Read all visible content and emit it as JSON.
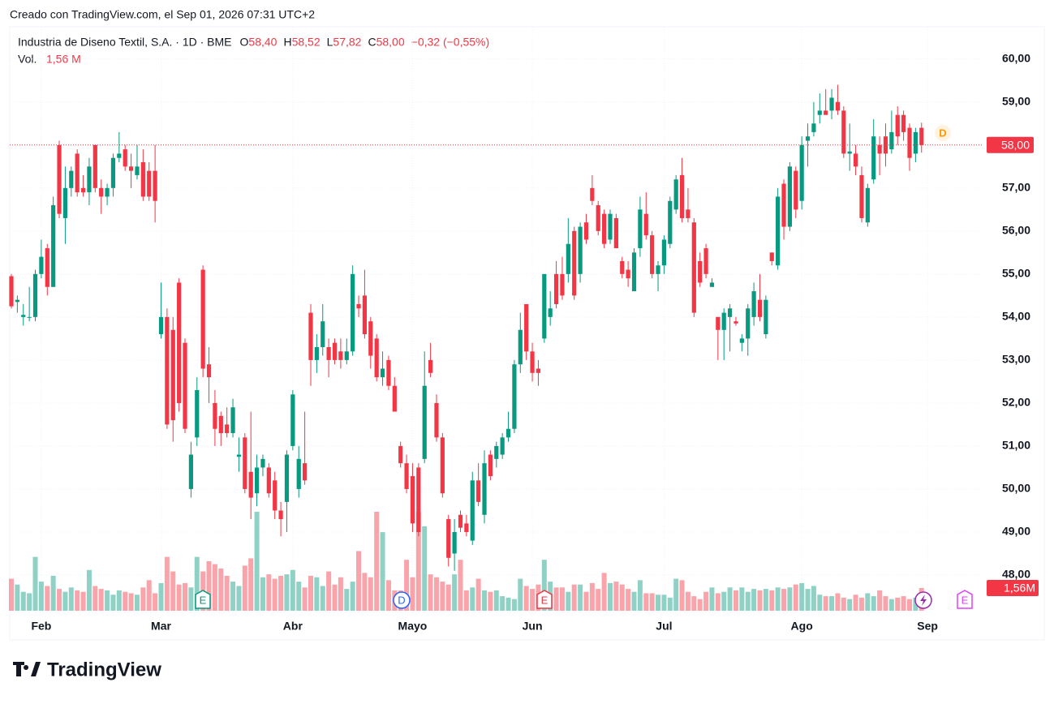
{
  "header": "Creado con TradingView.com, el Sep 01, 2026 07:31 UTC+2",
  "footer": "TradingView",
  "chart_data": {
    "type": "candlestick",
    "symbol": "Industria de Diseno Textil, S.A. · 1D · BME",
    "legend": {
      "o_label": "O",
      "o": "58,40",
      "h_label": "H",
      "h": "58,52",
      "l_label": "L",
      "l": "57,82",
      "c_label": "C",
      "c": "58,00",
      "change": "−0,32 (−0,55%)",
      "vol_label": "Vol.",
      "vol": "1,56 M"
    },
    "up_color": "#089981",
    "down_color": "#f23645",
    "grid": true,
    "xlim": [
      -0.27,
      162.06
    ],
    "ylim": [
      47.17,
      60.75
    ],
    "yticks": [
      {
        "value": 48,
        "label": "48,00"
      },
      {
        "value": 49,
        "label": "49,00"
      },
      {
        "value": 50,
        "label": "50,00"
      },
      {
        "value": 51,
        "label": "51,00"
      },
      {
        "value": 52,
        "label": "52,00"
      },
      {
        "value": 53,
        "label": "53,00"
      },
      {
        "value": 54,
        "label": "54,00"
      },
      {
        "value": 55,
        "label": "55,00"
      },
      {
        "value": 56,
        "label": "56,00"
      },
      {
        "value": 57,
        "label": "57,00"
      },
      {
        "value": 58,
        "label": "58,00"
      },
      {
        "value": 59,
        "label": "59,00"
      },
      {
        "value": 60,
        "label": "60,00"
      }
    ],
    "xticks": [
      {
        "value": 5,
        "label": "Feb"
      },
      {
        "value": 25,
        "label": "Mar"
      },
      {
        "value": 47,
        "label": "Abr"
      },
      {
        "value": 67,
        "label": "Mayo"
      },
      {
        "value": 87,
        "label": "Jun"
      },
      {
        "value": 109,
        "label": "Jul"
      },
      {
        "value": 132,
        "label": "Ago"
      },
      {
        "value": 153,
        "label": "Sep"
      }
    ],
    "last_price": {
      "value": 58,
      "label": "58,00"
    },
    "last_volume": {
      "value": 1.56,
      "label": "1,56M"
    },
    "events": [
      "E",
      "D",
      "E",
      "E"
    ],
    "dividend": "D",
    "ohlc": [
      [
        54.95,
        55.0,
        54.2,
        54.25
      ],
      [
        54.35,
        54.5,
        54.1,
        54.4
      ],
      [
        54.0,
        54.3,
        53.8,
        54.05
      ],
      [
        54.0,
        54.7,
        53.9,
        54.0
      ],
      [
        54.0,
        55.1,
        53.9,
        55.0
      ],
      [
        55.0,
        55.8,
        54.9,
        55.4
      ],
      [
        55.6,
        55.7,
        54.5,
        54.7
      ],
      [
        54.7,
        56.8,
        54.7,
        56.6
      ],
      [
        58.0,
        58.1,
        56.3,
        56.4
      ],
      [
        56.3,
        57.5,
        55.7,
        57.0
      ],
      [
        57.0,
        57.5,
        56.8,
        57.4
      ],
      [
        57.8,
        57.9,
        56.8,
        56.9
      ],
      [
        57.0,
        57.3,
        56.8,
        56.9
      ],
      [
        56.9,
        57.7,
        56.6,
        57.5
      ],
      [
        58.0,
        58.0,
        56.9,
        57.0
      ],
      [
        57.0,
        57.2,
        56.4,
        56.8
      ],
      [
        56.8,
        57.1,
        56.6,
        57.0
      ],
      [
        57.0,
        57.8,
        56.8,
        57.7
      ],
      [
        57.7,
        58.3,
        57.6,
        57.8
      ],
      [
        57.9,
        58.0,
        57.4,
        57.5
      ],
      [
        57.5,
        57.8,
        57.0,
        57.4
      ],
      [
        57.3,
        58.0,
        57.2,
        57.5
      ],
      [
        57.6,
        57.9,
        56.7,
        56.8
      ],
      [
        57.4,
        57.6,
        56.7,
        56.8
      ],
      [
        57.4,
        58.0,
        56.2,
        56.7
      ],
      [
        53.6,
        54.8,
        53.5,
        54.0
      ],
      [
        54.0,
        54.2,
        51.4,
        51.5
      ],
      [
        53.7,
        54.0,
        51.1,
        51.6
      ],
      [
        54.8,
        54.9,
        51.8,
        52.0
      ],
      [
        53.4,
        53.5,
        51.3,
        51.4
      ],
      [
        50.0,
        51.1,
        49.8,
        50.8
      ],
      [
        51.2,
        52.6,
        51.0,
        52.3
      ],
      [
        55.1,
        55.2,
        52.6,
        52.8
      ],
      [
        52.9,
        53.3,
        52.0,
        52.6
      ],
      [
        52.0,
        52.3,
        51.0,
        51.4
      ],
      [
        51.7,
        51.8,
        51.0,
        51.3
      ],
      [
        51.5,
        51.9,
        51.2,
        51.3
      ],
      [
        51.3,
        52.1,
        51.2,
        51.9
      ],
      [
        50.75,
        51.2,
        50.4,
        50.8
      ],
      [
        51.2,
        51.3,
        49.9,
        50.0
      ],
      [
        50.4,
        51.8,
        49.3,
        49.8
      ],
      [
        49.9,
        50.8,
        49.6,
        50.5
      ],
      [
        50.5,
        50.8,
        50.3,
        50.7
      ],
      [
        50.5,
        50.6,
        49.8,
        49.9
      ],
      [
        50.2,
        50.4,
        49.3,
        49.5
      ],
      [
        49.5,
        49.7,
        48.9,
        49.3
      ],
      [
        49.7,
        50.9,
        49.0,
        50.8
      ],
      [
        51.0,
        52.3,
        50.9,
        52.2
      ],
      [
        50.0,
        51.0,
        49.8,
        50.7
      ],
      [
        50.6,
        51.8,
        50.1,
        50.2
      ],
      [
        54.1,
        54.3,
        52.4,
        53.0
      ],
      [
        53.0,
        53.6,
        52.7,
        53.3
      ],
      [
        53.3,
        54.3,
        53.1,
        53.9
      ],
      [
        53.3,
        53.5,
        52.6,
        53.0
      ],
      [
        53.4,
        53.5,
        52.9,
        53.0
      ],
      [
        53.2,
        53.5,
        52.8,
        53.0
      ],
      [
        53.0,
        53.5,
        52.9,
        53.2
      ],
      [
        53.2,
        55.2,
        53.1,
        55.0
      ],
      [
        54.3,
        54.5,
        54.0,
        54.2
      ],
      [
        54.5,
        55.1,
        53.5,
        53.6
      ],
      [
        53.9,
        54.0,
        52.8,
        53.1
      ],
      [
        53.5,
        53.6,
        52.5,
        52.6
      ],
      [
        52.6,
        53.2,
        52.4,
        52.8
      ],
      [
        53.0,
        53.1,
        52.3,
        52.4
      ],
      [
        52.4,
        52.6,
        51.8,
        51.8
      ],
      [
        51.0,
        51.1,
        50.5,
        50.6
      ],
      [
        50.6,
        50.8,
        49.9,
        50.0
      ],
      [
        50.3,
        50.6,
        49.0,
        49.2
      ],
      [
        50.5,
        50.6,
        48.9,
        49.0
      ],
      [
        50.7,
        53.2,
        50.6,
        52.4
      ],
      [
        53.0,
        53.4,
        52.6,
        52.7
      ],
      [
        52.0,
        52.2,
        51.1,
        51.2
      ],
      [
        51.2,
        51.3,
        49.8,
        49.9
      ],
      [
        49.3,
        49.4,
        48.2,
        48.4
      ],
      [
        48.5,
        49.3,
        48.1,
        49.0
      ],
      [
        49.4,
        49.5,
        49.0,
        49.1
      ],
      [
        49.2,
        49.4,
        48.9,
        49.0
      ],
      [
        48.8,
        50.4,
        48.7,
        50.2
      ],
      [
        50.2,
        50.6,
        49.6,
        49.7
      ],
      [
        49.4,
        50.9,
        49.2,
        50.6
      ],
      [
        50.8,
        50.9,
        50.2,
        50.3
      ],
      [
        50.7,
        51.1,
        50.5,
        51.0
      ],
      [
        50.8,
        51.3,
        50.7,
        51.2
      ],
      [
        51.2,
        51.8,
        51.1,
        51.4
      ],
      [
        51.4,
        53.0,
        51.3,
        52.9
      ],
      [
        52.9,
        54.1,
        52.7,
        53.7
      ],
      [
        54.3,
        54.3,
        53.0,
        53.2
      ],
      [
        53.2,
        53.4,
        52.5,
        52.7
      ],
      [
        52.8,
        53.0,
        52.4,
        52.7
      ],
      [
        53.5,
        55.0,
        53.4,
        55.0
      ],
      [
        54.0,
        54.6,
        53.8,
        54.2
      ],
      [
        55.0,
        55.3,
        54.2,
        54.3
      ],
      [
        55.0,
        55.4,
        54.4,
        54.5
      ],
      [
        55.0,
        56.3,
        54.8,
        55.7
      ],
      [
        56.0,
        56.1,
        54.4,
        54.5
      ],
      [
        55.0,
        56.2,
        54.8,
        56.1
      ],
      [
        56.2,
        56.4,
        55.7,
        55.8
      ],
      [
        57.0,
        57.3,
        56.6,
        56.7
      ],
      [
        56.6,
        56.7,
        55.9,
        56.0
      ],
      [
        56.4,
        56.5,
        55.6,
        55.7
      ],
      [
        55.8,
        56.5,
        55.7,
        56.4
      ],
      [
        56.3,
        56.4,
        55.6,
        55.6
      ],
      [
        55.3,
        55.4,
        54.9,
        55.0
      ],
      [
        55.1,
        55.3,
        54.7,
        54.9
      ],
      [
        54.6,
        55.6,
        54.6,
        55.5
      ],
      [
        55.6,
        56.8,
        55.4,
        56.5
      ],
      [
        56.4,
        56.9,
        55.8,
        55.9
      ],
      [
        55.9,
        56.0,
        54.9,
        55.0
      ],
      [
        55.0,
        55.3,
        54.6,
        55.2
      ],
      [
        55.2,
        55.9,
        55.0,
        55.8
      ],
      [
        55.7,
        56.8,
        55.6,
        56.7
      ],
      [
        56.5,
        57.3,
        56.4,
        57.2
      ],
      [
        57.3,
        57.7,
        56.2,
        56.3
      ],
      [
        56.5,
        57.0,
        56.2,
        56.3
      ],
      [
        56.2,
        56.3,
        54.0,
        54.1
      ],
      [
        55.3,
        55.5,
        54.7,
        54.8
      ],
      [
        55.6,
        55.7,
        54.9,
        55.0
      ],
      [
        54.7,
        54.9,
        54.7,
        54.8
      ],
      [
        54.0,
        54.0,
        53.0,
        53.7
      ],
      [
        53.7,
        54.2,
        53.0,
        54.1
      ],
      [
        54.0,
        54.3,
        53.2,
        54.2
      ],
      [
        53.9,
        54.0,
        53.8,
        53.85
      ],
      [
        53.4,
        53.6,
        53.2,
        53.5
      ],
      [
        53.5,
        54.3,
        53.1,
        54.2
      ],
      [
        54.0,
        54.8,
        53.8,
        54.6
      ],
      [
        54.4,
        55.0,
        53.9,
        54.0
      ],
      [
        53.6,
        54.5,
        53.5,
        54.4
      ],
      [
        55.5,
        55.5,
        55.2,
        55.3
      ],
      [
        55.2,
        57.0,
        55.1,
        56.8
      ],
      [
        57.1,
        57.2,
        55.8,
        56.1
      ],
      [
        56.1,
        57.6,
        56.0,
        57.5
      ],
      [
        57.4,
        57.5,
        56.3,
        56.5
      ],
      [
        56.7,
        58.2,
        56.5,
        58.0
      ],
      [
        58.1,
        58.5,
        57.5,
        58.2
      ],
      [
        58.3,
        59.0,
        58.2,
        58.5
      ],
      [
        58.7,
        59.2,
        58.5,
        58.8
      ],
      [
        58.8,
        59.3,
        58.7,
        58.7
      ],
      [
        58.8,
        59.3,
        58.6,
        59.1
      ],
      [
        59.0,
        59.4,
        58.7,
        58.8
      ],
      [
        58.8,
        58.9,
        57.7,
        57.8
      ],
      [
        57.8,
        58.5,
        57.4,
        57.85
      ],
      [
        57.8,
        58.0,
        57.3,
        57.5
      ],
      [
        57.3,
        57.5,
        56.2,
        56.3
      ],
      [
        56.2,
        57.1,
        56.1,
        57.0
      ],
      [
        57.2,
        58.6,
        57.1,
        58.2
      ],
      [
        58.0,
        58.2,
        57.3,
        57.8
      ],
      [
        58.2,
        58.5,
        57.5,
        57.8
      ],
      [
        57.9,
        58.8,
        57.8,
        58.3
      ],
      [
        58.7,
        58.9,
        58.0,
        58.2
      ],
      [
        58.7,
        58.8,
        58.1,
        58.3
      ],
      [
        58.4,
        58.5,
        57.4,
        57.7
      ],
      [
        57.8,
        58.4,
        57.6,
        58.3
      ],
      [
        58.4,
        58.52,
        57.82,
        58.0
      ]
    ],
    "volume": [
      2.2,
      1.8,
      1.3,
      1.2,
      3.7,
      2.0,
      1.7,
      2.4,
      1.5,
      1.3,
      1.6,
      1.4,
      1.3,
      2.8,
      1.7,
      1.5,
      1.4,
      1.1,
      1.4,
      1.3,
      1.2,
      1.1,
      1.6,
      2.1,
      1.2,
      1.9,
      3.7,
      2.7,
      1.8,
      1.9,
      1.6,
      3.7,
      2.7,
      3.4,
      3.2,
      2.9,
      2.4,
      2.0,
      1.7,
      3.1,
      3.6,
      6.8,
      2.3,
      2.5,
      2.2,
      2.4,
      2.5,
      2.8,
      2.0,
      1.6,
      2.4,
      2.3,
      1.7,
      2.7,
      1.8,
      2.3,
      1.5,
      2.0,
      4.1,
      2.6,
      2.3,
      6.8,
      5.4,
      2.1,
      1.4,
      1.4,
      3.5,
      2.3,
      6.8,
      5.8,
      2.5,
      2.3,
      2.0,
      1.8,
      2.5,
      3.5,
      1.4,
      1.6,
      2.2,
      1.4,
      1.3,
      1.4,
      1.0,
      0.9,
      0.8,
      2.2,
      1.7,
      1.5,
      1.8,
      3.5,
      2.0,
      1.6,
      1.6,
      1.3,
      1.8,
      1.8,
      1.3,
      1.9,
      1.5,
      2.6,
      1.9,
      2.0,
      1.8,
      1.5,
      1.3,
      2.1,
      1.2,
      1.2,
      1.1,
      1.1,
      0.9,
      2.2,
      2.1,
      1.3,
      1.0,
      0.8,
      1.3,
      1.6,
      1.2,
      1.3,
      1.6,
      1.4,
      1.6,
      1.3,
      1.5,
      1.4,
      1.5,
      1.4,
      1.6,
      1.5,
      1.6,
      1.8,
      1.9,
      1.5,
      1.7,
      1.1,
      1.0,
      1.0,
      1.2,
      0.9,
      0.8,
      1.1,
      0.9,
      1.2,
      1.0,
      1.4,
      1.0,
      0.8,
      0.9,
      1.0,
      0.8,
      0.9,
      1.56
    ]
  }
}
